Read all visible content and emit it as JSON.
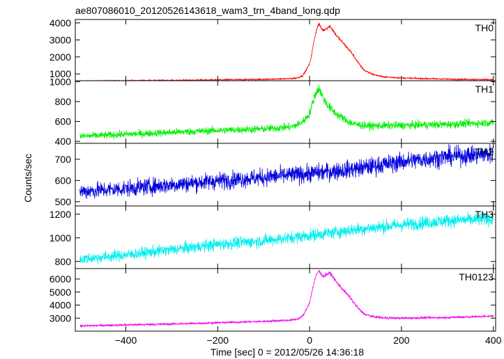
{
  "chart_data": {
    "type": "line",
    "title": "ae807086010_20120526143618_wam3_trn_4band_long.qdp",
    "xlabel": "Time [sec] 0 = 2012/05/26 14:36:18",
    "ylabel": "Counts/sec",
    "xlim": [
      -510,
      405
    ],
    "xticks": [
      -400,
      -200,
      0,
      200,
      400
    ],
    "xtick_labels": [
      "−400",
      "−200",
      "0",
      "200",
      "400"
    ],
    "panels": [
      {
        "name": "TH0",
        "color": "#ff0000",
        "ylim": [
          600,
          4200
        ],
        "yticks": [
          1000,
          2000,
          3000,
          4000
        ],
        "x": [
          -500,
          -400,
          -300,
          -200,
          -100,
          -40,
          -25,
          -15,
          -8,
          0,
          5,
          10,
          15,
          20,
          25,
          30,
          35,
          40,
          45,
          50,
          60,
          70,
          80,
          90,
          100,
          110,
          120,
          140,
          160,
          200,
          300,
          400
        ],
        "y": [
          580,
          600,
          620,
          650,
          680,
          720,
          780,
          900,
          1200,
          1600,
          2200,
          3000,
          3600,
          3950,
          3700,
          3550,
          3650,
          3750,
          3800,
          3600,
          3200,
          2900,
          2600,
          2300,
          1900,
          1500,
          1200,
          950,
          830,
          760,
          690,
          660
        ]
      },
      {
        "name": "TH1",
        "color": "#00ee00",
        "ylim": [
          380,
          1010
        ],
        "yticks": [
          400,
          600,
          800,
          1000
        ],
        "x": [
          -500,
          -400,
          -300,
          -200,
          -100,
          -40,
          -20,
          -10,
          0,
          5,
          10,
          15,
          20,
          25,
          30,
          40,
          50,
          60,
          70,
          80,
          90,
          100,
          130,
          200,
          300,
          400
        ],
        "y": [
          450,
          470,
          490,
          510,
          525,
          545,
          580,
          620,
          680,
          760,
          840,
          900,
          930,
          890,
          830,
          760,
          710,
          670,
          640,
          610,
          585,
          570,
          555,
          560,
          570,
          590
        ]
      },
      {
        "name": "TH2",
        "color": "#0000dd",
        "ylim": [
          480,
          775
        ],
        "yticks": [
          500,
          600,
          700
        ],
        "x": [
          -500,
          -400,
          -300,
          -200,
          -100,
          0,
          100,
          200,
          300,
          400
        ],
        "y": [
          548,
          562,
          580,
          598,
          615,
          632,
          655,
          688,
          712,
          726
        ]
      },
      {
        "name": "TH3",
        "color": "#00eeee",
        "ylim": [
          740,
          1270
        ],
        "yticks": [
          800,
          1000,
          1200
        ],
        "x": [
          -500,
          -400,
          -300,
          -200,
          -100,
          0,
          100,
          200,
          300,
          400
        ],
        "y": [
          820,
          855,
          900,
          945,
          975,
          1020,
          1070,
          1110,
          1145,
          1160
        ]
      },
      {
        "name": "TH0123",
        "color": "#ee00ee",
        "ylim": [
          2000,
          6800
        ],
        "yticks": [
          3000,
          4000,
          5000,
          6000
        ],
        "x": [
          -500,
          -400,
          -300,
          -200,
          -100,
          -40,
          -25,
          -15,
          -8,
          0,
          5,
          10,
          15,
          20,
          25,
          30,
          35,
          40,
          45,
          50,
          60,
          70,
          80,
          90,
          100,
          110,
          120,
          140,
          160,
          200,
          300,
          400
        ],
        "y": [
          2400,
          2480,
          2550,
          2650,
          2750,
          2850,
          2950,
          3150,
          3600,
          4200,
          5000,
          5800,
          6300,
          6600,
          6400,
          6200,
          6300,
          6400,
          6450,
          6200,
          5700,
          5300,
          4900,
          4500,
          4000,
          3600,
          3300,
          3100,
          3020,
          3000,
          3050,
          3150
        ]
      }
    ]
  }
}
